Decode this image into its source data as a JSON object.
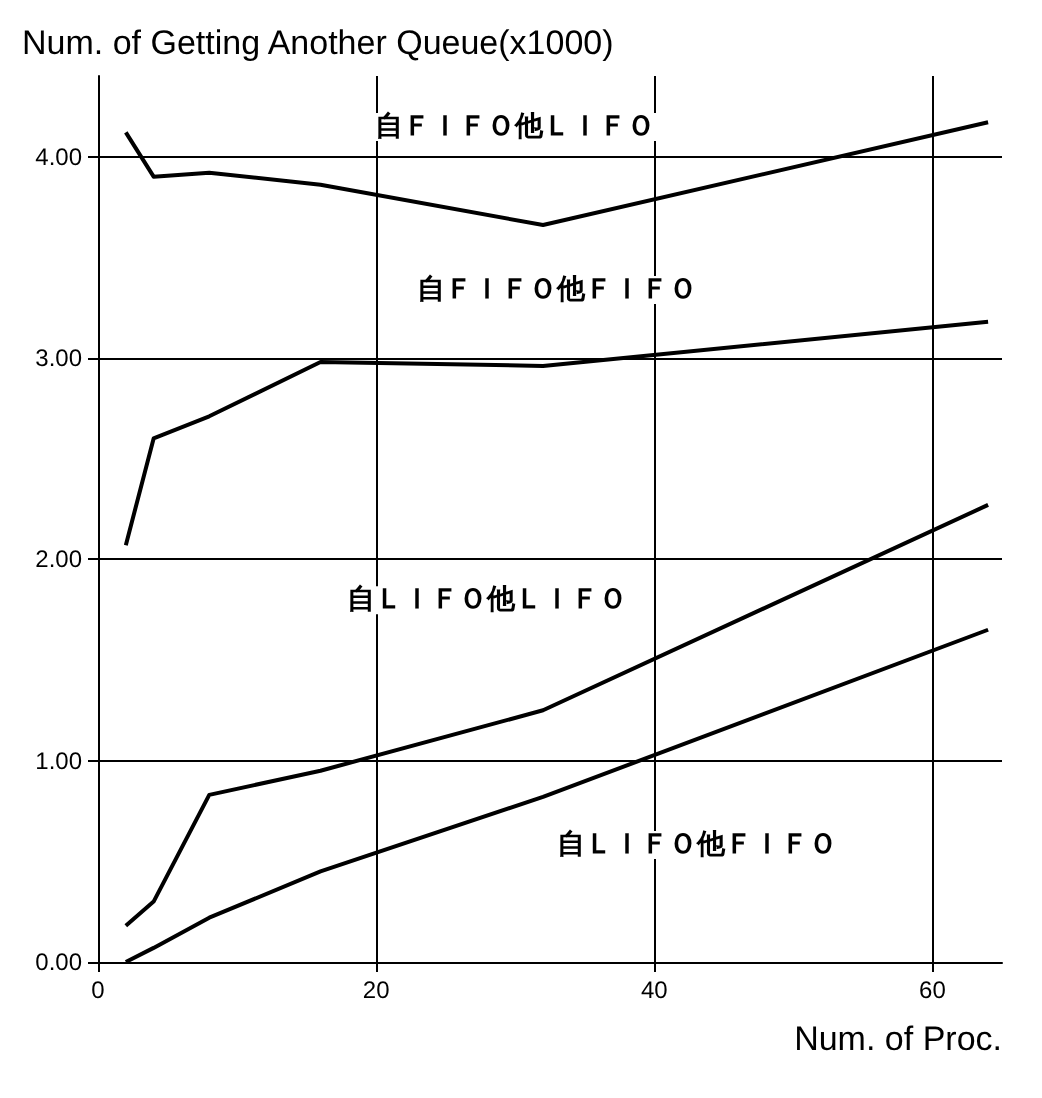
{
  "chart_data": {
    "type": "line",
    "ylabel": "Num. of Getting Another Queue(x1000)",
    "xlabel": "Num. of Proc.",
    "xlim": [
      0,
      65
    ],
    "ylim": [
      0,
      4.4
    ],
    "xticks": [
      0,
      20,
      40,
      60
    ],
    "yticks": [
      {
        "value": 0,
        "label": "0.00"
      },
      {
        "value": 1,
        "label": "1.00"
      },
      {
        "value": 2,
        "label": "2.00"
      },
      {
        "value": 3,
        "label": "3.00"
      },
      {
        "value": 4,
        "label": "4.00"
      }
    ],
    "grid": true,
    "marker": "none",
    "line_style": "solid",
    "x": [
      2,
      4,
      8,
      16,
      32,
      64
    ],
    "series": [
      {
        "name": "自ＦＩＦＯ他ＬＩＦＯ",
        "color": "#000000",
        "values": [
          4.12,
          3.9,
          3.92,
          3.86,
          3.66,
          4.17
        ]
      },
      {
        "name": "自ＦＩＦＯ他ＦＩＦＯ",
        "color": "#000000",
        "values": [
          2.07,
          2.6,
          2.71,
          2.98,
          2.96,
          3.18
        ]
      },
      {
        "name": "自ＬＩＦＯ他ＬＩＦＯ",
        "color": "#000000",
        "values": [
          0.18,
          0.3,
          0.83,
          0.95,
          1.25,
          2.27
        ]
      },
      {
        "name": "自ＬＩＦＯ他ＦＩＦＯ",
        "color": "#000000",
        "values": [
          0,
          0.07,
          0.22,
          0.45,
          0.82,
          1.65
        ]
      }
    ]
  }
}
